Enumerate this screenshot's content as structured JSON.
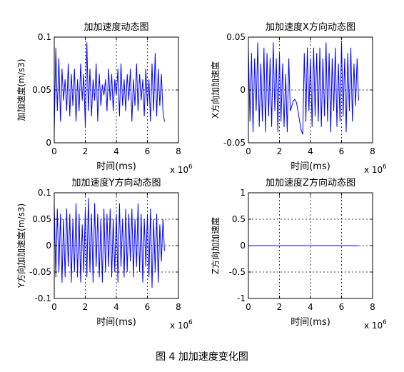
{
  "figure_caption": "图 4  加加速度变化图",
  "colors": {
    "series": "#0000ff",
    "axes": "#000000",
    "grid": "#000000"
  },
  "chart_data": [
    {
      "type": "line",
      "title": "加加速度动态图",
      "xlabel": "时间(ms)",
      "ylabel": "加加速度(m/s3)",
      "x_multiplier": "x 10",
      "x_multiplier_exp": "6",
      "xlim": [
        0,
        8
      ],
      "ylim": [
        0,
        0.1
      ],
      "xticks": [
        0,
        2,
        4,
        6,
        8
      ],
      "xtick_labels": [
        "0",
        "2",
        "4",
        "6",
        "8"
      ],
      "yticks": [
        0,
        0.05,
        0.1
      ],
      "ytick_labels": [
        "0",
        "0.05",
        "0.1"
      ],
      "grid": true,
      "series": [
        {
          "x": [
            0.0,
            0.1,
            0.2,
            0.3,
            0.4,
            0.5,
            0.6,
            0.7,
            0.8,
            0.9,
            1.0,
            1.1,
            1.2,
            1.3,
            1.4,
            1.5,
            1.6,
            1.7,
            1.8,
            1.9,
            2.0,
            2.1,
            2.2,
            2.3,
            2.4,
            2.5,
            2.6,
            2.7,
            2.8,
            2.9,
            3.0,
            3.1,
            3.2,
            3.3,
            3.4,
            3.5,
            3.6,
            3.7,
            3.8,
            3.9,
            4.0,
            4.1,
            4.2,
            4.3,
            4.4,
            4.5,
            4.6,
            4.7,
            4.8,
            4.9,
            5.0,
            5.1,
            5.2,
            5.3,
            5.4,
            5.5,
            5.6,
            5.7,
            5.8,
            5.9,
            6.0,
            6.1,
            6.2,
            6.3,
            6.4,
            6.5,
            6.6,
            6.7,
            6.8,
            6.9,
            7.0,
            7.1
          ],
          "y": [
            0.01,
            0.09,
            0.03,
            0.08,
            0.02,
            0.07,
            0.04,
            0.06,
            0.03,
            0.075,
            0.025,
            0.065,
            0.035,
            0.07,
            0.02,
            0.06,
            0.03,
            0.075,
            0.04,
            0.065,
            0.015,
            0.095,
            0.03,
            0.07,
            0.025,
            0.06,
            0.04,
            0.075,
            0.02,
            0.065,
            0.035,
            0.055,
            0.045,
            0.06,
            0.03,
            0.07,
            0.04,
            0.065,
            0.03,
            0.06,
            0.045,
            0.07,
            0.025,
            0.075,
            0.035,
            0.06,
            0.03,
            0.065,
            0.04,
            0.07,
            0.02,
            0.06,
            0.035,
            0.075,
            0.03,
            0.065,
            0.04,
            0.06,
            0.025,
            0.07,
            0.035,
            0.06,
            0.02,
            0.075,
            0.03,
            0.085,
            0.025,
            0.07,
            0.035,
            0.065,
            0.03,
            0.02
          ]
        }
      ]
    },
    {
      "type": "line",
      "title": "加加速度X方向动态图",
      "xlabel": "时间(ms)",
      "ylabel": "X方向加加速度",
      "x_multiplier": "x 10",
      "x_multiplier_exp": "6",
      "xlim": [
        0,
        8
      ],
      "ylim": [
        -0.05,
        0.05
      ],
      "xticks": [
        0,
        2,
        4,
        6,
        8
      ],
      "xtick_labels": [
        "0",
        "2",
        "4",
        "6",
        "8"
      ],
      "yticks": [
        -0.05,
        0,
        0.05
      ],
      "ytick_labels": [
        "-0.05",
        "0",
        "0.05"
      ],
      "grid": true,
      "series": [
        {
          "x": [
            0.0,
            0.1,
            0.2,
            0.3,
            0.4,
            0.5,
            0.6,
            0.7,
            0.8,
            0.9,
            1.0,
            1.1,
            1.2,
            1.3,
            1.4,
            1.5,
            1.6,
            1.7,
            1.8,
            1.9,
            2.0,
            2.1,
            2.2,
            2.3,
            2.4,
            2.5,
            2.6,
            2.7,
            2.8,
            2.9,
            3.0,
            3.1,
            3.2,
            3.3,
            3.4,
            3.5,
            3.6,
            3.7,
            3.8,
            3.9,
            4.0,
            4.1,
            4.2,
            4.3,
            4.4,
            4.5,
            4.6,
            4.7,
            4.8,
            4.9,
            5.0,
            5.1,
            5.2,
            5.3,
            5.4,
            5.5,
            5.6,
            5.7,
            5.8,
            5.9,
            6.0,
            6.1,
            6.2,
            6.3,
            6.4,
            6.5,
            6.6,
            6.7,
            6.8,
            6.9,
            7.0,
            7.1
          ],
          "y": [
            0.04,
            -0.03,
            0.035,
            -0.04,
            0.03,
            -0.02,
            0.045,
            -0.035,
            0.025,
            -0.03,
            0.04,
            -0.04,
            0.035,
            -0.025,
            0.03,
            -0.035,
            0.045,
            -0.02,
            0.03,
            -0.04,
            0.035,
            -0.03,
            0.025,
            -0.035,
            0.015,
            -0.04,
            0.03,
            -0.02,
            -0.015,
            -0.01,
            -0.009,
            -0.012,
            -0.02,
            -0.03,
            -0.038,
            -0.042,
            0.035,
            -0.03,
            0.04,
            -0.02,
            0.03,
            -0.035,
            0.04,
            -0.025,
            0.035,
            -0.03,
            0.04,
            -0.035,
            0.03,
            -0.025,
            0.045,
            -0.03,
            0.035,
            -0.04,
            0.03,
            -0.02,
            0.04,
            -0.035,
            0.025,
            -0.03,
            0.045,
            -0.025,
            0.03,
            -0.04,
            0.035,
            -0.02,
            0.04,
            -0.03,
            0.025,
            -0.015,
            0.03,
            -0.01
          ]
        }
      ]
    },
    {
      "type": "line",
      "title": "加加速度Y方向动态图",
      "xlabel": "时间(ms)",
      "ylabel": "Y方向加加速度(m/s3)",
      "x_multiplier": "x 10",
      "x_multiplier_exp": "6",
      "xlim": [
        0,
        8
      ],
      "ylim": [
        -0.1,
        0.1
      ],
      "xticks": [
        0,
        2,
        4,
        6,
        8
      ],
      "xtick_labels": [
        "0",
        "2",
        "4",
        "6",
        "8"
      ],
      "yticks": [
        -0.1,
        -0.05,
        0,
        0.05,
        0.1
      ],
      "ytick_labels": [
        "-0.1",
        "-0.05",
        "0",
        "0.05",
        "0.1"
      ],
      "grid": true,
      "series": [
        {
          "x": [
            0.0,
            0.1,
            0.2,
            0.3,
            0.4,
            0.5,
            0.6,
            0.7,
            0.8,
            0.9,
            1.0,
            1.1,
            1.2,
            1.3,
            1.4,
            1.5,
            1.6,
            1.7,
            1.8,
            1.9,
            2.0,
            2.1,
            2.2,
            2.3,
            2.4,
            2.5,
            2.6,
            2.7,
            2.8,
            2.9,
            3.0,
            3.1,
            3.2,
            3.3,
            3.4,
            3.5,
            3.6,
            3.7,
            3.8,
            3.9,
            4.0,
            4.1,
            4.2,
            4.3,
            4.4,
            4.5,
            4.6,
            4.7,
            4.8,
            4.9,
            5.0,
            5.1,
            5.2,
            5.3,
            5.4,
            5.5,
            5.6,
            5.7,
            5.8,
            5.9,
            6.0,
            6.1,
            6.2,
            6.3,
            6.4,
            6.5,
            6.6,
            6.7,
            6.8,
            6.9,
            7.0,
            7.1
          ],
          "y": [
            0.08,
            -0.06,
            0.07,
            -0.05,
            0.06,
            -0.07,
            0.05,
            -0.06,
            0.07,
            -0.04,
            0.06,
            -0.07,
            0.05,
            -0.05,
            0.08,
            -0.06,
            0.06,
            -0.07,
            0.04,
            -0.05,
            0.07,
            -0.06,
            0.09,
            -0.05,
            0.06,
            -0.07,
            0.08,
            -0.04,
            0.06,
            -0.06,
            0.05,
            -0.07,
            0.07,
            -0.05,
            0.06,
            -0.04,
            0.07,
            -0.06,
            0.05,
            -0.05,
            0.06,
            -0.07,
            0.08,
            -0.04,
            0.05,
            -0.06,
            0.07,
            -0.05,
            0.06,
            -0.03,
            0.07,
            -0.06,
            0.05,
            -0.04,
            0.08,
            -0.05,
            0.06,
            -0.07,
            0.05,
            -0.04,
            0.06,
            -0.06,
            0.07,
            -0.08,
            0.05,
            -0.05,
            0.06,
            -0.07,
            0.04,
            -0.03,
            0.05,
            -0.01
          ]
        }
      ]
    },
    {
      "type": "line",
      "title": "加加速度Z方向动态图",
      "xlabel": "时间(ms)",
      "ylabel": "Z方向加加速度",
      "x_multiplier": "x 10",
      "x_multiplier_exp": "6",
      "xlim": [
        0,
        8
      ],
      "ylim": [
        -1,
        1
      ],
      "xticks": [
        0,
        2,
        4,
        6,
        8
      ],
      "xtick_labels": [
        "0",
        "2",
        "4",
        "6",
        "8"
      ],
      "yticks": [
        -1,
        -0.5,
        0,
        0.5,
        1
      ],
      "ytick_labels": [
        "-1",
        "-0.5",
        "0",
        "0.5",
        "1"
      ],
      "grid": true,
      "series": [
        {
          "x": [
            0,
            7.1
          ],
          "y": [
            0,
            0
          ]
        }
      ]
    }
  ]
}
